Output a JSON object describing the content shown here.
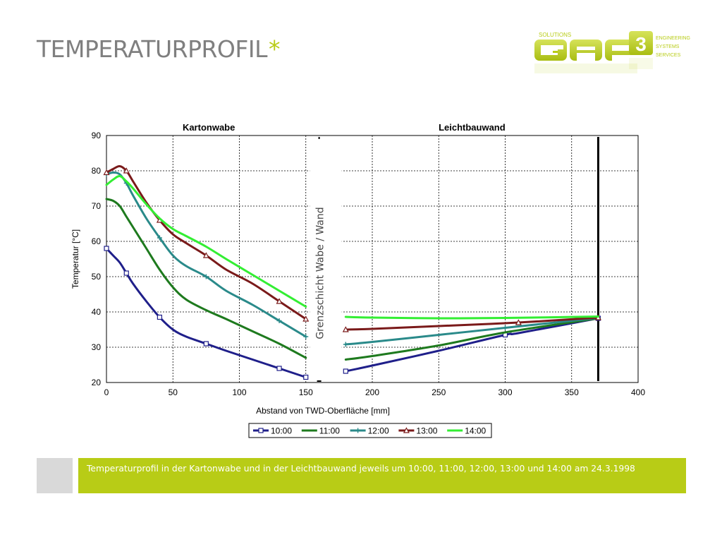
{
  "slide": {
    "title": "TEMPERATURPROFIL",
    "title_mark": "*",
    "accent_color": "#b8cc16",
    "caption": "Temperaturprofil in der Kartonwabe und in der Leichtbauwand jeweils um 10:00, 11:00, 12:00, 13:00 und 14:00 am 24.3.1998"
  },
  "logo": {
    "top_text": "SOLUTIONS",
    "right_lines": [
      "ENGINEERING",
      "SYSTEMS",
      "SERVICES"
    ],
    "wordmark": "GAP",
    "digit": "3",
    "color": "#b8cc16"
  },
  "chart_data": {
    "type": "line",
    "panel_titles": [
      "Kartonwabe",
      "Leichtbauwand"
    ],
    "xlabel": "Abstand von TWD-Oberfläche [mm]",
    "ylabel": "Temperatur [°C]",
    "xlim": [
      0,
      400
    ],
    "ylim": [
      20,
      90
    ],
    "xticks": [
      0,
      50,
      100,
      150,
      200,
      250,
      300,
      350,
      400
    ],
    "yticks": [
      20,
      30,
      40,
      50,
      60,
      70,
      80,
      90
    ],
    "grid": true,
    "legend_position": "bottom",
    "boundary_annotation": "Grenzschicht Wabe / Wand",
    "boundary_x": 160,
    "wall_end_x": 370,
    "series": [
      {
        "name": "10:00",
        "color": "#1f1f8a",
        "marker": "square",
        "segments": [
          [
            [
              0,
              58
            ],
            [
              5,
              56
            ],
            [
              10,
              54
            ],
            [
              15,
              51
            ],
            [
              20,
              48
            ],
            [
              30,
              43
            ],
            [
              40,
              38.5
            ],
            [
              50,
              35
            ],
            [
              60,
              33
            ],
            [
              75,
              31
            ],
            [
              90,
              29
            ],
            [
              110,
              26.5
            ],
            [
              130,
              24
            ],
            [
              150,
              21.5
            ]
          ],
          [
            [
              180,
              23.2
            ],
            [
              200,
              24.8
            ],
            [
              250,
              29
            ],
            [
              300,
              33.5
            ],
            [
              310,
              34
            ],
            [
              370,
              38.2
            ]
          ]
        ]
      },
      {
        "name": "11:00",
        "color": "#1e7a1e",
        "marker": "none",
        "segments": [
          [
            [
              0,
              72
            ],
            [
              5,
              71.5
            ],
            [
              10,
              70
            ],
            [
              15,
              67
            ],
            [
              20,
              64
            ],
            [
              30,
              58
            ],
            [
              40,
              52
            ],
            [
              50,
              47
            ],
            [
              60,
              43.5
            ],
            [
              75,
              40.5
            ],
            [
              90,
              38
            ],
            [
              110,
              34.5
            ],
            [
              130,
              31
            ],
            [
              150,
              27
            ]
          ],
          [
            [
              180,
              26.5
            ],
            [
              200,
              27.5
            ],
            [
              250,
              30.5
            ],
            [
              300,
              34.2
            ],
            [
              370,
              38.2
            ]
          ]
        ]
      },
      {
        "name": "12:00",
        "color": "#2a8a8a",
        "marker": "plus",
        "segments": [
          [
            [
              0,
              79
            ],
            [
              5,
              79.5
            ],
            [
              10,
              79
            ],
            [
              15,
              76.5
            ],
            [
              20,
              73
            ],
            [
              30,
              66.5
            ],
            [
              40,
              61
            ],
            [
              50,
              56
            ],
            [
              60,
              53
            ],
            [
              75,
              50
            ],
            [
              90,
              46
            ],
            [
              110,
              42
            ],
            [
              130,
              37.5
            ],
            [
              150,
              33
            ]
          ],
          [
            [
              180,
              30.8
            ],
            [
              200,
              31.5
            ],
            [
              250,
              33.5
            ],
            [
              300,
              35.5
            ],
            [
              370,
              38.3
            ]
          ]
        ]
      },
      {
        "name": "13:00",
        "color": "#7a1a1a",
        "marker": "triangle",
        "segments": [
          [
            [
              0,
              79.5
            ],
            [
              5,
              80.5
            ],
            [
              10,
              81.3
            ],
            [
              15,
              80
            ],
            [
              20,
              77
            ],
            [
              30,
              71
            ],
            [
              40,
              66
            ],
            [
              50,
              62
            ],
            [
              60,
              59.5
            ],
            [
              75,
              56
            ],
            [
              90,
              52
            ],
            [
              110,
              48
            ],
            [
              130,
              43
            ],
            [
              150,
              38
            ]
          ],
          [
            [
              180,
              35
            ],
            [
              200,
              35.2
            ],
            [
              250,
              36
            ],
            [
              310,
              37
            ],
            [
              370,
              38.4
            ]
          ]
        ]
      },
      {
        "name": "14:00",
        "color": "#33ee33",
        "marker": "none",
        "segments": [
          [
            [
              0,
              76
            ],
            [
              5,
              77.5
            ],
            [
              10,
              78.5
            ],
            [
              15,
              77
            ],
            [
              20,
              75
            ],
            [
              30,
              70.5
            ],
            [
              40,
              66.5
            ],
            [
              50,
              63.5
            ],
            [
              60,
              61.5
            ],
            [
              75,
              58.5
            ],
            [
              90,
              55
            ],
            [
              110,
              50.5
            ],
            [
              130,
              46
            ],
            [
              150,
              41.5
            ]
          ],
          [
            [
              180,
              38.6
            ],
            [
              200,
              38.4
            ],
            [
              250,
              38.2
            ],
            [
              300,
              38.3
            ],
            [
              370,
              38.7
            ]
          ]
        ]
      }
    ]
  }
}
